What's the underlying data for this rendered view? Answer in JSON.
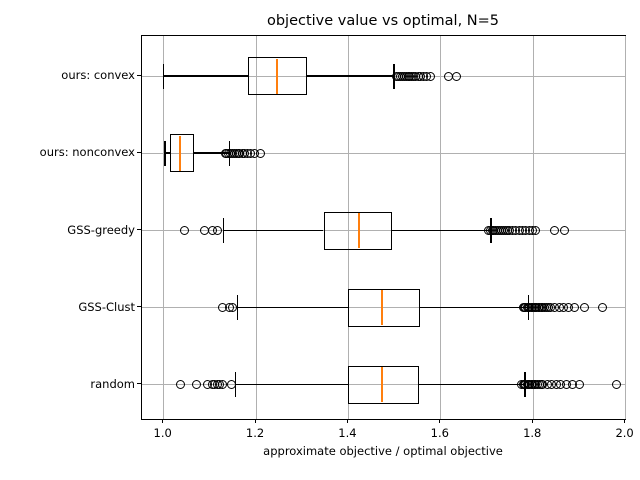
{
  "chart_data": {
    "type": "boxplot",
    "orientation": "horizontal",
    "title": "objective value vs optimal, N=5",
    "xlabel": "approximate objective / optimal objective",
    "xlim": [
      0.952,
      2.003
    ],
    "xticks": [
      1.0,
      1.2,
      1.4,
      1.6,
      1.8,
      2.0
    ],
    "xtick_labels": [
      "1.0",
      "1.2",
      "1.4",
      "1.6",
      "1.8",
      "2.0"
    ],
    "grid": true,
    "legend": "none",
    "box_color": "#000000",
    "median_color": "#ff7f0e",
    "series": [
      {
        "label": "ours: convex",
        "whisker_low": 1.0,
        "q1": 1.183,
        "median": 1.246,
        "q3": 1.31,
        "whisker_high": 1.499,
        "fliers": [
          1.505,
          1.509,
          1.513,
          1.517,
          1.521,
          1.525,
          1.529,
          1.533,
          1.537,
          1.541,
          1.546,
          1.551,
          1.556,
          1.562,
          1.57,
          1.578,
          1.617,
          1.634
        ]
      },
      {
        "label": "ours: nonconvex",
        "whisker_low": 1.003,
        "q1": 1.013,
        "median": 1.036,
        "q3": 1.065,
        "whisker_high": 1.143,
        "fliers": [
          1.133,
          1.137,
          1.141,
          1.145,
          1.149,
          1.153,
          1.157,
          1.161,
          1.165,
          1.17,
          1.175,
          1.181,
          1.188,
          1.196,
          1.21
        ]
      },
      {
        "label": "GSS-greedy",
        "whisker_low": 1.13,
        "q1": 1.346,
        "median": 1.422,
        "q3": 1.494,
        "whisker_high": 1.709,
        "fliers": [
          1.045,
          1.088,
          1.106,
          1.117,
          1.703,
          1.707,
          1.711,
          1.715,
          1.719,
          1.723,
          1.727,
          1.731,
          1.735,
          1.739,
          1.744,
          1.749,
          1.755,
          1.762,
          1.77,
          1.777,
          1.784,
          1.791,
          1.798,
          1.806,
          1.845,
          1.867
        ]
      },
      {
        "label": "GSS-Clust",
        "whisker_low": 1.16,
        "q1": 1.398,
        "median": 1.473,
        "q3": 1.555,
        "whisker_high": 1.79,
        "fliers": [
          1.128,
          1.142,
          1.149,
          1.778,
          1.781,
          1.784,
          1.787,
          1.79,
          1.793,
          1.796,
          1.799,
          1.802,
          1.805,
          1.808,
          1.811,
          1.814,
          1.817,
          1.82,
          1.824,
          1.828,
          1.833,
          1.838,
          1.845,
          1.856,
          1.866,
          1.877,
          1.89,
          1.91,
          1.95
        ]
      },
      {
        "label": "random",
        "whisker_low": 1.156,
        "q1": 1.398,
        "median": 1.473,
        "q3": 1.553,
        "whisker_high": 1.782,
        "fliers": [
          1.037,
          1.07,
          1.094,
          1.106,
          1.111,
          1.116,
          1.121,
          1.127,
          1.146,
          1.775,
          1.778,
          1.781,
          1.784,
          1.787,
          1.79,
          1.793,
          1.796,
          1.799,
          1.802,
          1.805,
          1.809,
          1.813,
          1.817,
          1.821,
          1.83,
          1.84,
          1.85,
          1.86,
          1.872,
          1.884,
          1.901,
          1.98
        ]
      }
    ]
  }
}
